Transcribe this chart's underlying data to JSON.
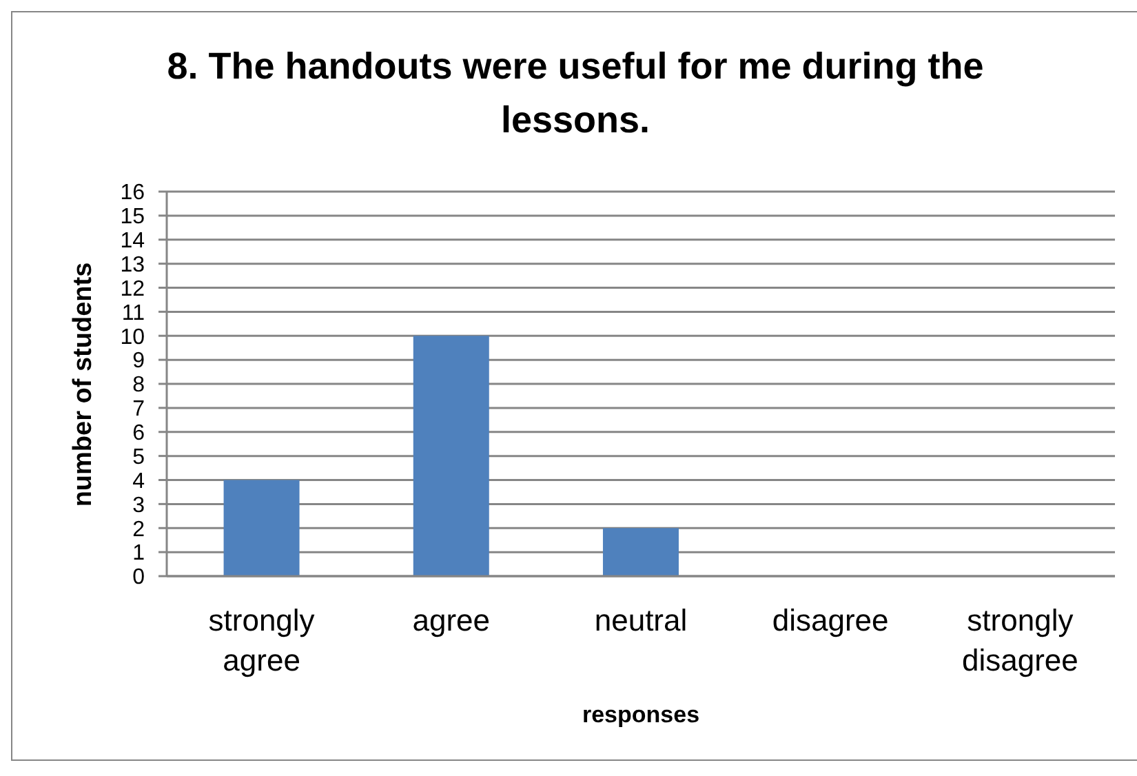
{
  "chart_data": {
    "type": "bar",
    "title": "8. The handouts were useful for me during the lessons.",
    "xlabel": "responses",
    "ylabel": "number of students",
    "categories": [
      "strongly agree",
      "agree",
      "neutral",
      "disagree",
      "strongly disagree"
    ],
    "values": [
      4,
      10,
      2,
      0,
      0
    ],
    "color": "#4f81bd",
    "ylim": [
      0,
      16
    ],
    "yticks": [
      0,
      1,
      2,
      3,
      4,
      5,
      6,
      7,
      8,
      9,
      10,
      11,
      12,
      13,
      14,
      15,
      16
    ],
    "grid": "y"
  }
}
